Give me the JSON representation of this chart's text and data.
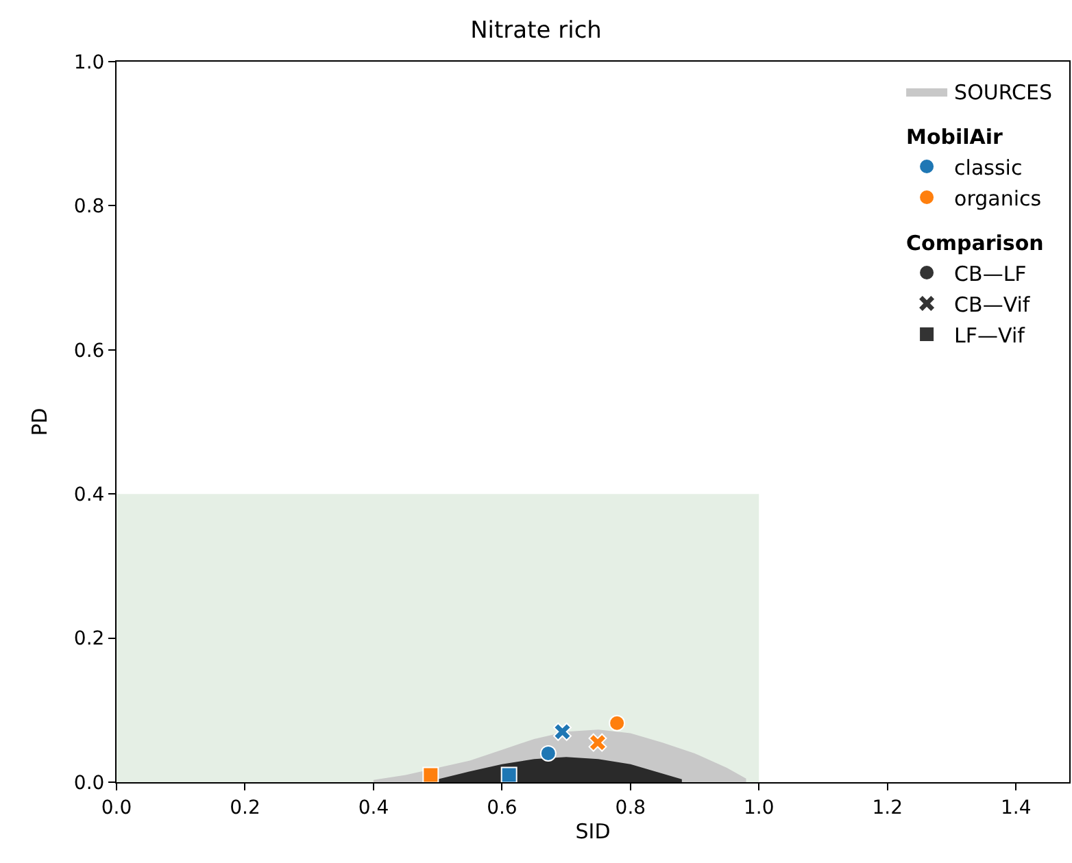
{
  "chart_data": {
    "type": "scatter",
    "title": "Nitrate rich",
    "xlabel": "SID",
    "ylabel": "PD",
    "xlim": [
      0,
      1.483
    ],
    "ylim": [
      0,
      1.0
    ],
    "xticks": [
      {
        "value": 0,
        "label": "0.0"
      },
      {
        "value": 0.2,
        "label": "0.2"
      },
      {
        "value": 0.4,
        "label": "0.4"
      },
      {
        "value": 0.6,
        "label": "0.6"
      },
      {
        "value": 0.8,
        "label": "0.8"
      },
      {
        "value": 1.0,
        "label": "1.0"
      },
      {
        "value": 1.2,
        "label": "1.2"
      },
      {
        "value": 1.4,
        "label": "1.4"
      }
    ],
    "yticks": [
      {
        "value": 0,
        "label": "0.0"
      },
      {
        "value": 0.2,
        "label": "0.2"
      },
      {
        "value": 0.4,
        "label": "0.4"
      },
      {
        "value": 0.6,
        "label": "0.6"
      },
      {
        "value": 0.8,
        "label": "0.8"
      },
      {
        "value": 1.0,
        "label": "1.0"
      }
    ],
    "legend": "top right",
    "legend_title": [
      "MobilAir",
      "Comparison"
    ],
    "series": [
      {
        "type": "area",
        "color": "#e5efe5",
        "x": [
          0,
          1.0
        ],
        "values": [
          0.4,
          0.4
        ]
      },
      {
        "type": "area",
        "name": "SOURCES",
        "color": "#c8c8c8",
        "x": [
          0.4,
          0.45,
          0.5,
          0.55,
          0.6,
          0.65,
          0.7,
          0.75,
          0.8,
          0.85,
          0.9,
          0.95,
          0.98
        ],
        "values": [
          0.003,
          0.01,
          0.02,
          0.03,
          0.045,
          0.06,
          0.07,
          0.073,
          0.068,
          0.055,
          0.04,
          0.02,
          0.005
        ]
      },
      {
        "type": "area",
        "color": "#2a2a2a",
        "x": [
          0.5,
          0.55,
          0.6,
          0.65,
          0.7,
          0.75,
          0.8,
          0.85,
          0.88
        ],
        "values": [
          0.004,
          0.015,
          0.025,
          0.032,
          0.035,
          0.032,
          0.025,
          0.012,
          0.004
        ]
      },
      {
        "name": "classic",
        "color": "#1f77b4",
        "x": [
          0.672,
          0.694,
          0.611
        ],
        "values": [
          0.04,
          0.07,
          0.01
        ],
        "marker": [
          "circle",
          "cross",
          "square"
        ]
      },
      {
        "name": "organics",
        "color": "#ff7f0e",
        "x": [
          0.779,
          0.749,
          0.489
        ],
        "values": [
          0.082,
          0.055,
          0.01
        ],
        "marker": [
          "circle",
          "cross",
          "square"
        ]
      },
      {
        "name": "CB—LF",
        "color": "#333333",
        "marker": "circle"
      },
      {
        "name": "CB—Vif",
        "color": "#333333",
        "marker": "cross"
      },
      {
        "name": "LF—Vif",
        "color": "#333333",
        "marker": "square"
      }
    ]
  }
}
